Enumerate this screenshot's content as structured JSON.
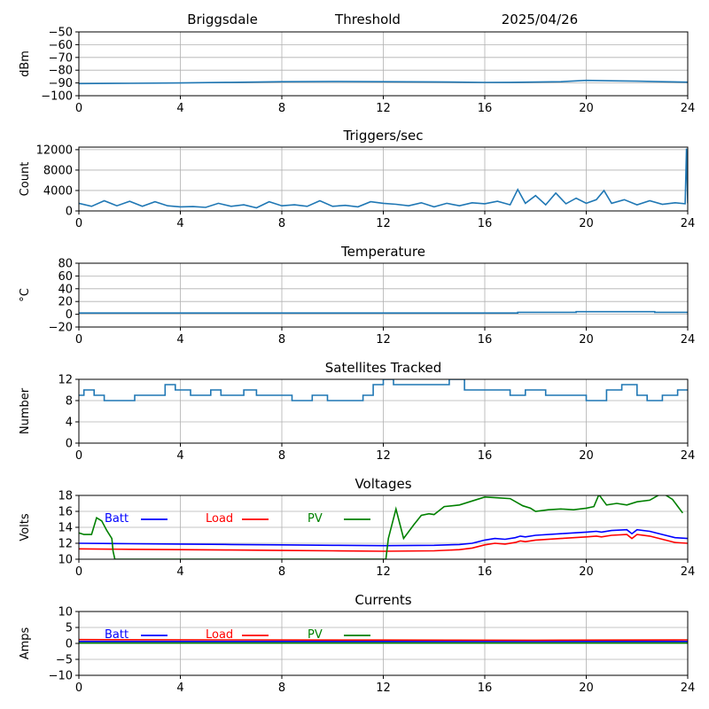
{
  "header": {
    "station": "Briggsdale",
    "mode": "Threshold",
    "date": "2025/04/26"
  },
  "colors": {
    "series": "#1f77b4",
    "batt": "#0000ff",
    "load": "#ff0000",
    "pv": "#008000",
    "grid": "#b0b0b0"
  },
  "chart_data": [
    {
      "id": "signal",
      "type": "line",
      "title": "",
      "ylabel": "dBm",
      "xlim": [
        0,
        24
      ],
      "ylim": [
        -100,
        -50
      ],
      "xticks": [
        0,
        4,
        8,
        12,
        16,
        20,
        24
      ],
      "yticks": [
        -100,
        -90,
        -80,
        -70,
        -60,
        -50
      ],
      "grid": true,
      "series": [
        {
          "color": "#1f77b4",
          "x": [
            0,
            2,
            4,
            6,
            8,
            10,
            12,
            14,
            16,
            17,
            18,
            19,
            20,
            21,
            22,
            23,
            24
          ],
          "y": [
            -90.5,
            -90.3,
            -90,
            -89.5,
            -89,
            -88.8,
            -89,
            -89.2,
            -89.6,
            -89.5,
            -89.3,
            -89,
            -88,
            -88.3,
            -88.6,
            -89,
            -89.4
          ]
        }
      ]
    },
    {
      "id": "triggers",
      "type": "line",
      "title": "Triggers/sec",
      "ylabel": "Count",
      "xlim": [
        0,
        24
      ],
      "ylim": [
        0,
        12500
      ],
      "xticks": [
        0,
        4,
        8,
        12,
        16,
        20,
        24
      ],
      "yticks": [
        0,
        4000,
        8000,
        12000
      ],
      "grid": true,
      "series": [
        {
          "color": "#1f77b4",
          "x": [
            0,
            0.5,
            1,
            1.5,
            2,
            2.5,
            3,
            3.5,
            4,
            4.5,
            5,
            5.5,
            6,
            6.5,
            7,
            7.5,
            8,
            8.5,
            9,
            9.5,
            10,
            10.5,
            11,
            11.5,
            12,
            12.5,
            13,
            13.5,
            14,
            14.5,
            15,
            15.5,
            16,
            16.5,
            17,
            17.3,
            17.6,
            18,
            18.4,
            18.8,
            19.2,
            19.6,
            20,
            20.4,
            20.7,
            21,
            21.5,
            22,
            22.5,
            23,
            23.5,
            23.9,
            23.95,
            24
          ],
          "y": [
            1500,
            900,
            2000,
            1000,
            1900,
            900,
            1800,
            1000,
            800,
            850,
            700,
            1500,
            900,
            1200,
            600,
            1800,
            1000,
            1200,
            900,
            2000,
            900,
            1100,
            800,
            1800,
            1500,
            1300,
            1000,
            1600,
            800,
            1500,
            1000,
            1600,
            1400,
            1900,
            1200,
            4200,
            1500,
            3000,
            1200,
            3500,
            1400,
            2500,
            1500,
            2200,
            4000,
            1500,
            2200,
            1200,
            2000,
            1300,
            1600,
            1400,
            12200,
            1500
          ]
        }
      ]
    },
    {
      "id": "temperature",
      "type": "line",
      "title": "Temperature",
      "ylabel": "°C",
      "xlim": [
        0,
        24
      ],
      "ylim": [
        -20,
        80
      ],
      "xticks": [
        0,
        4,
        8,
        12,
        16,
        20,
        24
      ],
      "yticks": [
        -20,
        0,
        20,
        40,
        60,
        80
      ],
      "grid": true,
      "series": [
        {
          "color": "#1f77b4",
          "x": [
            0,
            17.3,
            17.3,
            19.6,
            19.6,
            22.7,
            22.7,
            24
          ],
          "y": [
            2,
            2,
            3,
            3,
            4,
            4,
            3,
            3
          ]
        }
      ]
    },
    {
      "id": "satellites",
      "type": "line",
      "title": "Satellites Tracked",
      "ylabel": "Number",
      "xlim": [
        0,
        24
      ],
      "ylim": [
        0,
        12
      ],
      "xticks": [
        0,
        4,
        8,
        12,
        16,
        20,
        24
      ],
      "yticks": [
        0,
        4,
        8,
        12
      ],
      "grid": true,
      "series": [
        {
          "color": "#1f77b4",
          "step": true,
          "x": [
            0,
            0.2,
            0.6,
            1,
            2.2,
            3,
            3.4,
            3.8,
            4.4,
            5.2,
            5.6,
            6.5,
            7,
            7.8,
            8.4,
            9.2,
            9.8,
            10.6,
            11.2,
            11.6,
            12,
            12.4,
            13,
            14.6,
            15.2,
            15.8,
            16.4,
            17,
            17.6,
            18.4,
            19.2,
            20,
            20.8,
            21.4,
            22,
            22.4,
            23,
            23.6,
            24
          ],
          "y": [
            9,
            10,
            9,
            8,
            9,
            9,
            11,
            10,
            9,
            10,
            9,
            10,
            9,
            9,
            8,
            9,
            8,
            8,
            9,
            11,
            12,
            11,
            11,
            12,
            10,
            10,
            10,
            9,
            10,
            9,
            9,
            8,
            10,
            11,
            9,
            8,
            9,
            10,
            10
          ]
        }
      ]
    },
    {
      "id": "voltages",
      "type": "line",
      "title": "Voltages",
      "ylabel": "Volts",
      "xlim": [
        0,
        24
      ],
      "ylim": [
        10,
        18
      ],
      "xticks": [
        0,
        4,
        8,
        12,
        16,
        20,
        24
      ],
      "yticks": [
        10,
        12,
        14,
        16,
        18
      ],
      "grid": true,
      "legend": [
        {
          "label": "Batt",
          "color": "#0000ff"
        },
        {
          "label": "Load",
          "color": "#ff0000"
        },
        {
          "label": "PV",
          "color": "#008000"
        }
      ],
      "series": [
        {
          "name": "Batt",
          "color": "#0000ff",
          "x": [
            0,
            2,
            4,
            6,
            8,
            10,
            12,
            14,
            15,
            15.5,
            16,
            16.4,
            16.8,
            17.2,
            17.4,
            17.6,
            18,
            19,
            20,
            20.4,
            20.6,
            21,
            21.6,
            21.8,
            22,
            22.5,
            23,
            23.5,
            24
          ],
          "y": [
            12,
            11.95,
            11.9,
            11.85,
            11.8,
            11.75,
            11.7,
            11.75,
            11.85,
            12,
            12.4,
            12.6,
            12.5,
            12.7,
            12.9,
            12.8,
            13,
            13.2,
            13.4,
            13.5,
            13.4,
            13.6,
            13.7,
            13.2,
            13.7,
            13.5,
            13.1,
            12.7,
            12.6
          ]
        },
        {
          "name": "Load",
          "color": "#ff0000",
          "x": [
            0,
            2,
            4,
            6,
            8,
            10,
            12,
            14,
            15,
            15.5,
            16,
            16.4,
            16.8,
            17.2,
            17.4,
            17.6,
            18,
            19,
            20,
            20.4,
            20.6,
            21,
            21.6,
            21.8,
            22,
            22.5,
            23,
            23.5,
            24
          ],
          "y": [
            11.3,
            11.25,
            11.2,
            11.15,
            11.1,
            11.05,
            11,
            11.05,
            11.2,
            11.4,
            11.8,
            12,
            11.9,
            12.1,
            12.3,
            12.2,
            12.4,
            12.6,
            12.8,
            12.9,
            12.8,
            13,
            13.1,
            12.6,
            13.1,
            12.9,
            12.5,
            12.1,
            12
          ]
        },
        {
          "name": "PV",
          "color": "#008000",
          "x": [
            0,
            0.2,
            0.5,
            0.7,
            0.9,
            1.1,
            1.3,
            1.35,
            1.42,
            12.1,
            12.2,
            12.5,
            12.8,
            13.2,
            13.5,
            13.8,
            14,
            14.4,
            15,
            15.5,
            16,
            16.5,
            17,
            17.5,
            17.8,
            18,
            18.5,
            19,
            19.5,
            20,
            20.3,
            20.5,
            20.8,
            21.2,
            21.6,
            22,
            22.5,
            23,
            23.4,
            23.8
          ],
          "y": [
            13.3,
            13.1,
            13.1,
            15.2,
            14.8,
            13.6,
            12.6,
            11,
            10,
            10,
            12.6,
            16.3,
            12.6,
            14.3,
            15.5,
            15.7,
            15.6,
            16.6,
            16.8,
            17.3,
            17.8,
            17.7,
            17.6,
            16.7,
            16.4,
            16,
            16.2,
            16.3,
            16.2,
            16.4,
            16.6,
            18.1,
            16.8,
            17,
            16.8,
            17.2,
            17.4,
            18.3,
            17.5,
            15.8
          ]
        }
      ]
    },
    {
      "id": "currents",
      "type": "line",
      "title": "Currents",
      "ylabel": "Amps",
      "xlim": [
        0,
        24
      ],
      "ylim": [
        -10,
        10
      ],
      "xticks": [
        0,
        4,
        8,
        12,
        16,
        20,
        24
      ],
      "yticks": [
        -10,
        -5,
        0,
        5,
        10
      ],
      "grid": true,
      "legend": [
        {
          "label": "Batt",
          "color": "#0000ff"
        },
        {
          "label": "Load",
          "color": "#ff0000"
        },
        {
          "label": "PV",
          "color": "#008000"
        }
      ],
      "series": [
        {
          "name": "Batt",
          "color": "#0000ff",
          "x": [
            0,
            24
          ],
          "y": [
            0.6,
            0.6
          ]
        },
        {
          "name": "Load",
          "color": "#ff0000",
          "x": [
            0,
            6,
            12,
            18,
            24
          ],
          "y": [
            1.2,
            1.1,
            1.05,
            1,
            1.1
          ]
        },
        {
          "name": "PV",
          "color": "#008000",
          "x": [
            0,
            24
          ],
          "y": [
            0.1,
            0.1
          ]
        }
      ]
    }
  ]
}
